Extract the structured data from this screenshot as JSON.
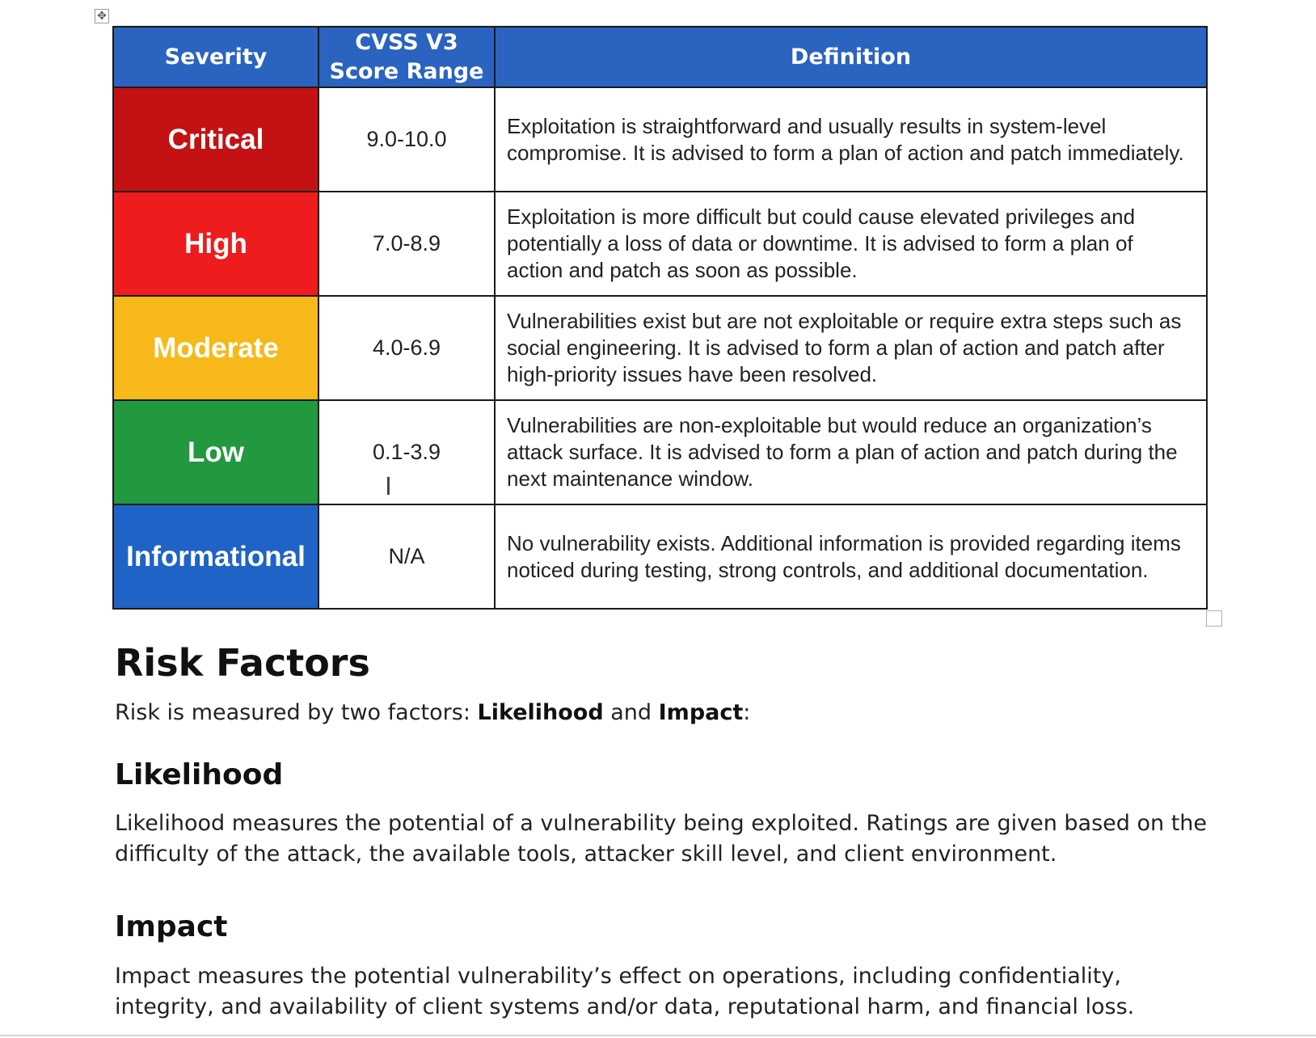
{
  "table": {
    "headers": {
      "severity": "Severity",
      "score_line1": "CVSS V3",
      "score_line2": "Score Range",
      "definition": "Definition"
    },
    "rows": [
      {
        "severity": "Critical",
        "color": "#c41214",
        "score": "9.0-10.0",
        "definition": "Exploitation is straightforward and usually results in system-level compromise.  It is advised to form a plan of action and patch immediately."
      },
      {
        "severity": "High",
        "color": "#ee1c1c",
        "score": "7.0-8.9",
        "definition": "Exploitation is more difficult but could cause elevated privileges and potentially a loss of data or downtime.  It is advised to form a plan of action and patch as soon as possible."
      },
      {
        "severity": "Moderate",
        "color": "#f7b919",
        "score": "4.0-6.9",
        "definition": "Vulnerabilities exist but are not exploitable or require extra steps such as social engineering.  It is advised to form a plan of action and patch after high-priority issues have been resolved."
      },
      {
        "severity": "Low",
        "color": "#22993e",
        "score": "0.1-3.9",
        "definition": "Vulnerabilities are non-exploitable but would reduce an organization’s attack surface.  It is advised to form a plan of action and patch during the next maintenance window."
      },
      {
        "severity": "Informational",
        "color": "#1f63c6",
        "score": "N/A",
        "definition": "No vulnerability exists.  Additional information is provided regarding items noticed during testing, strong controls, and additional documentation."
      }
    ]
  },
  "risk": {
    "title": "Risk Factors",
    "intro_prefix": "Risk is measured by two factors: ",
    "intro_likelihood": "Likelihood",
    "intro_and": " and ",
    "intro_impact": "Impact",
    "intro_suffix": ":",
    "likelihood_heading": "Likelihood",
    "likelihood_text": "Likelihood measures the potential of a vulnerability being exploited.  Ratings are given based on the difficulty of the attack, the available tools, attacker skill level, and client environment.",
    "impact_heading": "Impact",
    "impact_text": "Impact measures the potential vulnerability’s effect on operations, including confidentiality, integrity, and availability of client systems and/or data, reputational harm, and financial loss."
  },
  "icons": {
    "move_handle": "move-arrows-icon",
    "cursor": "text-cursor-icon"
  },
  "colors": {
    "header_bg": "#2a63c0"
  }
}
